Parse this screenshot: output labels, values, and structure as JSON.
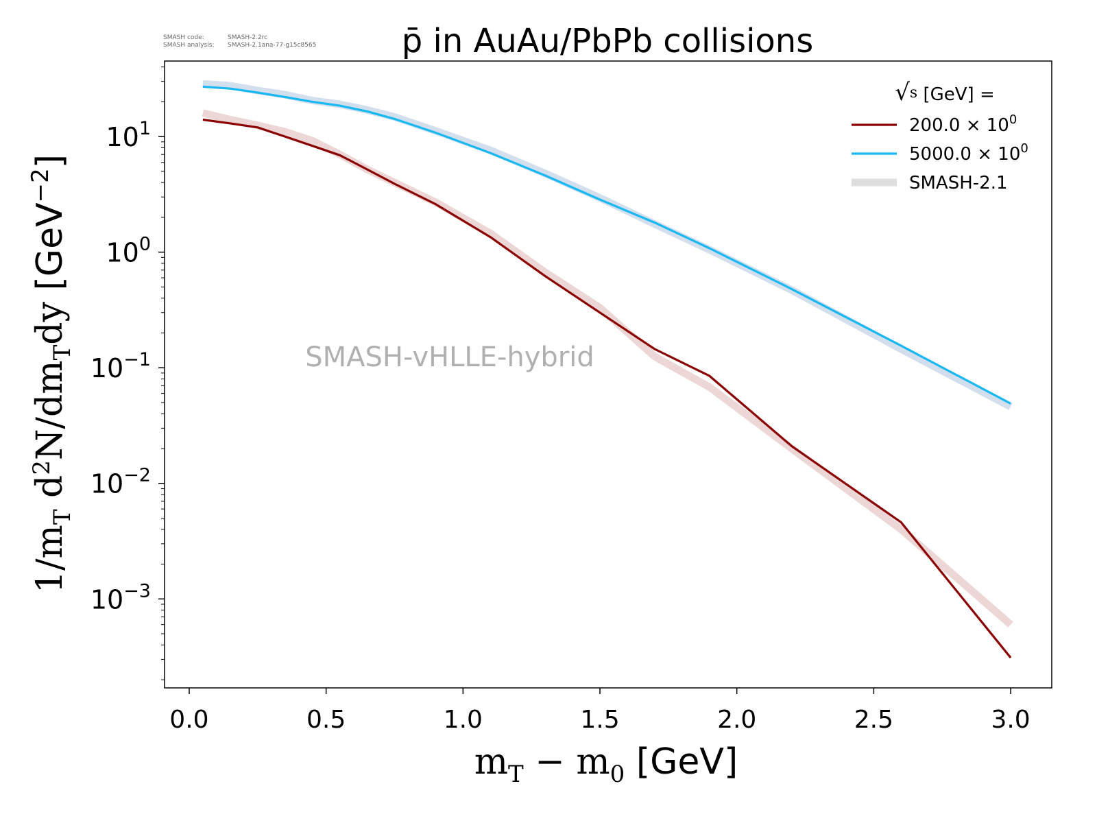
{
  "meta": {
    "code_label": "SMASH code:",
    "code_value": "SMASH-2.2rc",
    "analysis_label": "SMASH analysis:",
    "analysis_value": "SMASH-2.1ana-77-g15c8565"
  },
  "chart_data": {
    "type": "line",
    "title": "p̄ in AuAu/PbPb collisions",
    "xlabel": "m_T − m_0 [GeV]",
    "ylabel": "1/m_T d²N/dm_Tdy [GeV⁻²]",
    "xlim": [
      -0.09,
      3.15
    ],
    "ylim": [
      0.00017,
      45
    ],
    "yscale": "log",
    "grid": false,
    "xticks": [
      "0.0",
      "0.5",
      "1.0",
      "1.5",
      "2.0",
      "2.5",
      "3.0"
    ],
    "yticks": [
      {
        "base": "10",
        "exp": "1"
      },
      {
        "base": "10",
        "exp": "0"
      },
      {
        "base": "10",
        "exp": "−1"
      },
      {
        "base": "10",
        "exp": "−2"
      },
      {
        "base": "10",
        "exp": "−3"
      }
    ],
    "watermark": "SMASH-vHLLE-hybrid",
    "legend": {
      "placement": "top-right",
      "title": "√s [GeV] =",
      "entries": [
        {
          "label": "200.0 × 10",
          "exp": "0",
          "color": "#8b0000"
        },
        {
          "label": "5000.0 × 10",
          "exp": "0",
          "color": "#1ab8f0"
        },
        {
          "label": "SMASH-2.1",
          "color": "#dedede"
        }
      ]
    },
    "series": [
      {
        "name": "200.0 × 10⁰",
        "color": "#8b0000",
        "x": [
          0.05,
          0.15,
          0.25,
          0.35,
          0.45,
          0.55,
          0.65,
          0.75,
          0.9,
          1.1,
          1.3,
          1.5,
          1.7,
          1.9,
          2.2,
          2.6,
          3.0
        ],
        "y": [
          14,
          13,
          12,
          10,
          8.3,
          6.9,
          5.2,
          3.9,
          2.6,
          1.35,
          0.62,
          0.3,
          0.145,
          0.085,
          0.021,
          0.0046,
          0.00031
        ]
      },
      {
        "name": "5000.0 × 10⁰",
        "color": "#1ab8f0",
        "x": [
          0.05,
          0.15,
          0.25,
          0.35,
          0.45,
          0.55,
          0.65,
          0.75,
          0.9,
          1.1,
          1.3,
          1.5,
          1.7,
          1.9,
          2.2,
          2.6,
          3.0
        ],
        "y": [
          27,
          26,
          24,
          22,
          20,
          18.5,
          16.5,
          14.2,
          10.8,
          7.2,
          4.6,
          2.85,
          1.8,
          1.08,
          0.48,
          0.155,
          0.049
        ]
      },
      {
        "name": "SMASH-2.1",
        "color": "#e6c8c8",
        "x": [
          0.05,
          0.15,
          0.25,
          0.35,
          0.45,
          0.55,
          0.65,
          0.75,
          0.9,
          1.1,
          1.3,
          1.5,
          1.7,
          1.9,
          2.2,
          2.6,
          3.0
        ],
        "y": [
          16,
          14,
          12.5,
          11,
          9.2,
          7.0,
          5.2,
          4.0,
          2.7,
          1.45,
          0.67,
          0.33,
          0.125,
          0.068,
          0.02,
          0.004,
          0.0006
        ]
      },
      {
        "name": "SMASH-2.1",
        "color": "#c4d4e6",
        "x": [
          0.05,
          0.15,
          0.25,
          0.35,
          0.45,
          0.55,
          0.65,
          0.75,
          0.9,
          1.1,
          1.3,
          1.5,
          1.7,
          1.9,
          2.2,
          2.6,
          3.0
        ],
        "y": [
          28.5,
          27.5,
          25,
          23,
          20.5,
          19,
          17,
          14.8,
          11.2,
          7.6,
          4.8,
          2.95,
          1.75,
          1.05,
          0.47,
          0.145,
          0.046
        ]
      }
    ]
  }
}
